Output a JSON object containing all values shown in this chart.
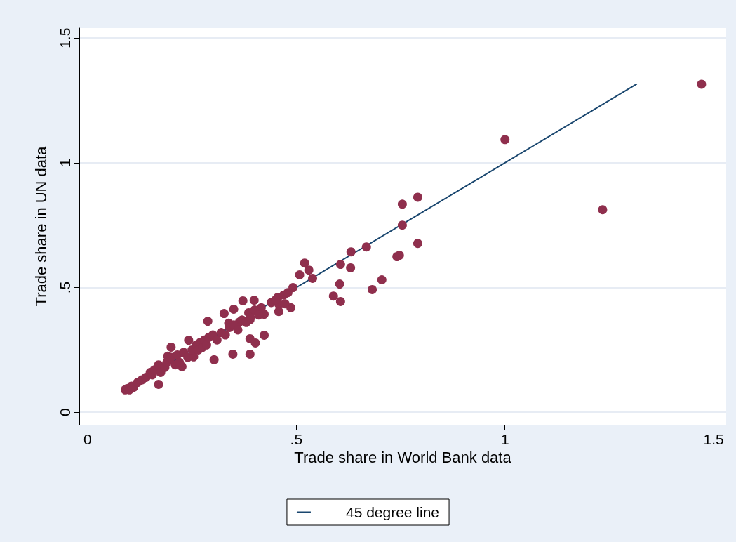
{
  "chart_data": {
    "type": "scatter",
    "xlabel": "Trade share in World Bank data",
    "ylabel": "Trade share in UN data",
    "xlim": [
      -0.02,
      1.53
    ],
    "ylim": [
      -0.05,
      1.54
    ],
    "xticks": [
      0,
      {
        "value": 0.5,
        "label": ".5"
      },
      1,
      1.5
    ],
    "yticks": [
      0,
      {
        "value": 0.5,
        "label": ".5"
      },
      1,
      1.5
    ],
    "grid": "y",
    "legend": "bottom",
    "marker": "circle",
    "series": [
      {
        "color": "#8f2f4d",
        "x": [
          1.471,
          1.0,
          1.234,
          0.754,
          0.791,
          0.754,
          0.791,
          0.741,
          0.747,
          0.705,
          0.682,
          0.668,
          0.631,
          0.63,
          0.606,
          0.604,
          0.606,
          0.589,
          0.52,
          0.53,
          0.539,
          0.508,
          0.492,
          0.487,
          0.456,
          0.458,
          0.458,
          0.473,
          0.416,
          0.423,
          0.399,
          0.372,
          0.35,
          0.386,
          0.389,
          0.364,
          0.327,
          0.338,
          0.288,
          0.423,
          0.389,
          0.402,
          0.348,
          0.389,
          0.303,
          0.242,
          0.2,
          0.192,
          0.254,
          0.226,
          0.17,
          0.09,
          0.095,
          0.1,
          0.105,
          0.11,
          0.12,
          0.13,
          0.14,
          0.15,
          0.155,
          0.16,
          0.17,
          0.175,
          0.185,
          0.19,
          0.2,
          0.21,
          0.215,
          0.22,
          0.23,
          0.24,
          0.25,
          0.26,
          0.265,
          0.27,
          0.275,
          0.28,
          0.285,
          0.29,
          0.3,
          0.31,
          0.32,
          0.33,
          0.34,
          0.35,
          0.36,
          0.37,
          0.38,
          0.39,
          0.4,
          0.41,
          0.44,
          0.45,
          0.47,
          0.48
        ],
        "values": [
          1.315,
          1.093,
          0.812,
          0.834,
          0.862,
          0.75,
          0.677,
          0.624,
          0.629,
          0.531,
          0.492,
          0.663,
          0.643,
          0.579,
          0.593,
          0.514,
          0.444,
          0.466,
          0.598,
          0.57,
          0.537,
          0.551,
          0.5,
          0.419,
          0.461,
          0.433,
          0.404,
          0.435,
          0.419,
          0.393,
          0.449,
          0.447,
          0.413,
          0.399,
          0.371,
          0.362,
          0.396,
          0.357,
          0.365,
          0.309,
          0.295,
          0.278,
          0.233,
          0.233,
          0.211,
          0.289,
          0.261,
          0.225,
          0.222,
          0.183,
          0.112,
          0.09,
          0.095,
          0.09,
          0.105,
          0.1,
          0.12,
          0.13,
          0.14,
          0.16,
          0.15,
          0.17,
          0.19,
          0.16,
          0.18,
          0.2,
          0.22,
          0.19,
          0.23,
          0.2,
          0.24,
          0.22,
          0.25,
          0.27,
          0.25,
          0.28,
          0.26,
          0.29,
          0.27,
          0.3,
          0.31,
          0.29,
          0.32,
          0.31,
          0.34,
          0.35,
          0.33,
          0.37,
          0.36,
          0.38,
          0.41,
          0.39,
          0.44,
          0.45,
          0.47,
          0.48
        ]
      },
      {
        "type": "line",
        "name": "45 degree line",
        "color": "#1a476f",
        "line_style": "solid",
        "marker": "none",
        "x": [
          0.09,
          1.315
        ],
        "values": [
          0.09,
          1.315
        ]
      }
    ]
  }
}
